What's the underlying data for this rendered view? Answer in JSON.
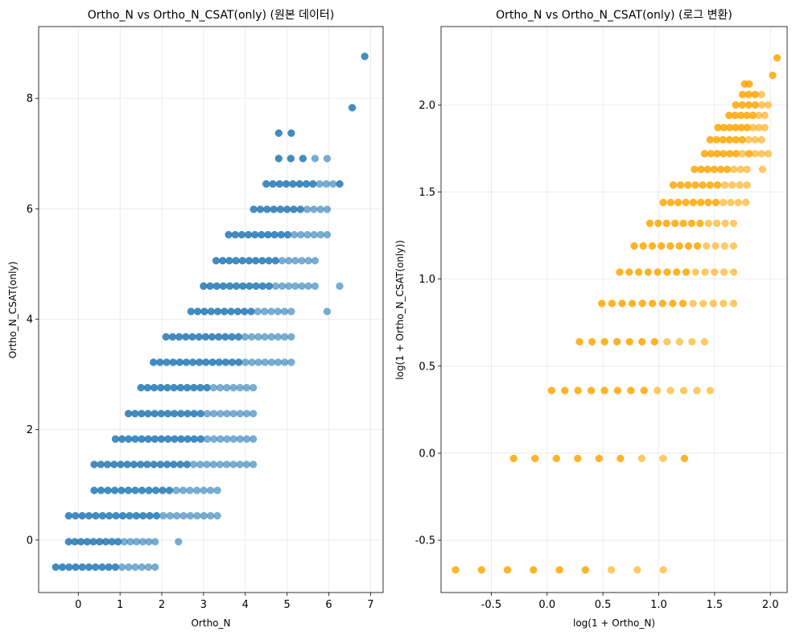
{
  "chart_data": [
    {
      "type": "scatter",
      "title": "Ortho_N vs Ortho_N_CSAT(only) (원본 데이터)",
      "xlabel": "Ortho_N",
      "ylabel": "Ortho_N_CSAT(only)",
      "xlim": [
        -0.95,
        7.3
      ],
      "ylim": [
        -0.95,
        9.3
      ],
      "xticks": [
        0,
        1,
        2,
        3,
        4,
        5,
        6,
        7
      ],
      "yticks": [
        0,
        2,
        4,
        6,
        8
      ],
      "xtick_labels": [
        "0",
        "1",
        "2",
        "3",
        "4",
        "5",
        "6",
        "7"
      ],
      "ytick_labels": [
        "0",
        "2",
        "4",
        "6",
        "8"
      ],
      "grid": true,
      "color": "#1f77b4",
      "alpha": 0.6,
      "row_levels": [
        -0.49,
        -0.03,
        0.44,
        0.9,
        1.37,
        1.83,
        2.29,
        2.76,
        3.22,
        3.68,
        4.14,
        4.6,
        5.06,
        5.53,
        5.99,
        6.45,
        6.91,
        7.37,
        7.83,
        8.76
      ],
      "row_ranges": [
        [
          -0.54,
          1.84,
          16
        ],
        [
          -0.23,
          1.84,
          15
        ],
        [
          -0.23,
          3.33,
          23
        ],
        [
          0.38,
          3.33,
          19
        ],
        [
          0.38,
          4.19,
          25
        ],
        [
          0.89,
          4.19,
          22
        ],
        [
          1.2,
          4.19,
          20
        ],
        [
          1.5,
          4.19,
          18
        ],
        [
          1.8,
          5.1,
          22
        ],
        [
          2.1,
          5.1,
          20
        ],
        [
          2.7,
          5.1,
          16
        ],
        [
          3,
          5.67,
          18
        ],
        [
          3.3,
          5.67,
          16
        ],
        [
          3.6,
          5.96,
          16
        ],
        [
          4.2,
          5.96,
          12
        ],
        [
          4.5,
          6.26,
          12
        ],
        [
          4.8,
          5.96,
          5
        ],
        [
          4.8,
          5.1,
          2
        ],
        [
          6.56,
          6.56,
          1
        ],
        [
          6.86,
          6.86,
          1
        ]
      ],
      "extra_points": [
        [
          2.4,
          -0.03
        ],
        [
          5.96,
          4.14
        ],
        [
          6.26,
          4.6
        ],
        [
          6.26,
          6.45
        ]
      ]
    },
    {
      "type": "scatter",
      "title": "Ortho_N vs Ortho_N_CSAT(only) (로그 변환)",
      "xlabel": "log(1 + Ortho_N)",
      "ylabel": "log(1 + Ortho_N_CSAT(only))",
      "xlim": [
        -0.95,
        2.15
      ],
      "ylim": [
        -0.8,
        2.45
      ],
      "xticks": [
        -0.5,
        0.0,
        0.5,
        1.0,
        1.5,
        2.0
      ],
      "yticks": [
        -0.5,
        0.0,
        0.5,
        1.0,
        1.5,
        2.0
      ],
      "xtick_labels": [
        "-0.5",
        "0.0",
        "0.5",
        "1.0",
        "1.5",
        "2.0"
      ],
      "ytick_labels": [
        "-0.5",
        "0.0",
        "0.5",
        "1.0",
        "1.5",
        "2.0"
      ],
      "grid": true,
      "color": "#ffa500",
      "alpha": 0.6,
      "row_levels": [
        -0.67,
        -0.03,
        0.36,
        0.64,
        0.86,
        1.04,
        1.19,
        1.32,
        1.44,
        1.54,
        1.63,
        1.72,
        1.8,
        1.87,
        1.94,
        2.0,
        2.06,
        2.12,
        2.17,
        2.27
      ],
      "row_ranges": [
        [
          -0.82,
          1.04,
          9
        ],
        [
          -0.3,
          1.23,
          9
        ],
        [
          0.04,
          1.46,
          13
        ],
        [
          0.29,
          1.41,
          11
        ],
        [
          0.49,
          1.67,
          14
        ],
        [
          0.65,
          1.67,
          13
        ],
        [
          0.78,
          1.67,
          12
        ],
        [
          0.92,
          1.67,
          11
        ],
        [
          1.04,
          1.78,
          12
        ],
        [
          1.13,
          1.79,
          11
        ],
        [
          1.32,
          1.79,
          9
        ],
        [
          1.41,
          1.92,
          10
        ],
        [
          1.46,
          1.92,
          9
        ],
        [
          1.53,
          1.95,
          9
        ],
        [
          1.63,
          1.95,
          7
        ],
        [
          1.69,
          1.98,
          6
        ],
        [
          1.75,
          1.92,
          4
        ],
        [
          1.77,
          1.81,
          2
        ],
        [
          2.02,
          2.02,
          1
        ],
        [
          2.06,
          2.06,
          1
        ]
      ],
      "extra_points": [
        [
          1.23,
          -0.03
        ],
        [
          1.81,
          1.72
        ],
        [
          1.98,
          1.72
        ],
        [
          1.93,
          1.63
        ]
      ]
    }
  ]
}
